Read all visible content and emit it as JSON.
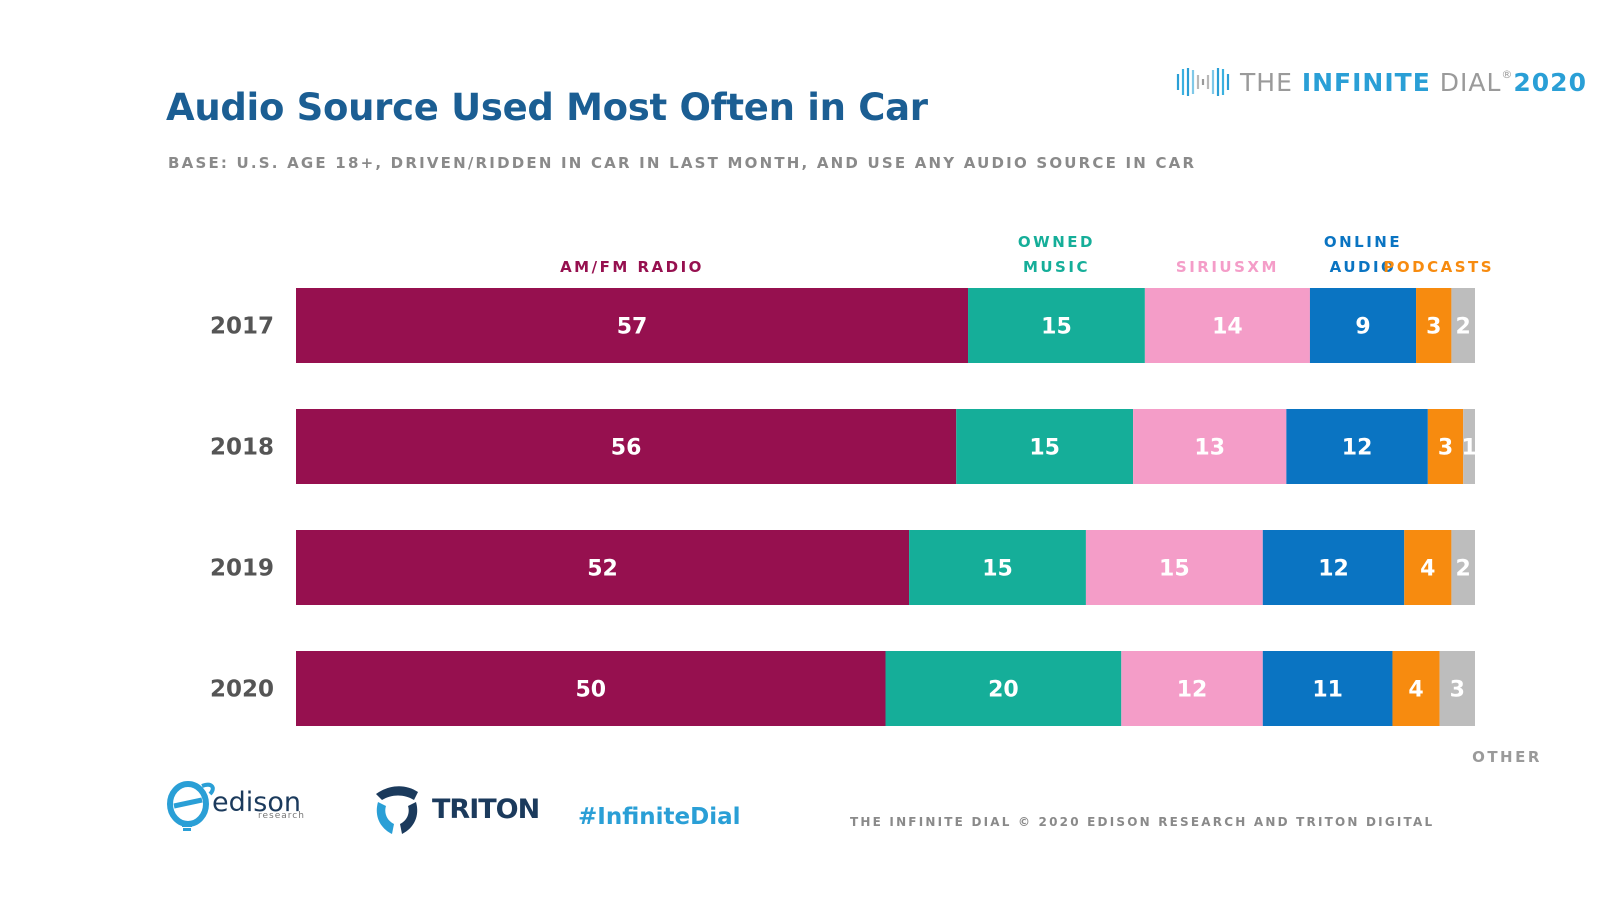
{
  "header": {
    "title": "Audio Source Used Most Often in Car",
    "subtitle": "BASE: U.S. AGE 18+, DRIVEN/RIDDEN IN CAR IN LAST MONTH, AND USE ANY AUDIO SOURCE IN CAR"
  },
  "brand": {
    "prefix": "THE ",
    "highlight": "INFINITE",
    "suffix": " DIAL",
    "trademark": "®",
    "year": "2020"
  },
  "chart_data": {
    "type": "bar",
    "orientation": "horizontal",
    "stacked": true,
    "categories": [
      "2017",
      "2018",
      "2019",
      "2020"
    ],
    "series": [
      {
        "name": "AM/FM RADIO",
        "legend_lines": [
          "AM/FM RADIO"
        ],
        "color": "#96104f",
        "values": [
          57,
          56,
          52,
          50
        ]
      },
      {
        "name": "OWNED MUSIC",
        "legend_lines": [
          "OWNED",
          "MUSIC"
        ],
        "color": "#15ae99",
        "values": [
          15,
          15,
          15,
          20
        ]
      },
      {
        "name": "SIRIUSXM",
        "legend_lines": [
          "SIRIUSXM"
        ],
        "color": "#f49dc8",
        "values": [
          14,
          13,
          15,
          12
        ]
      },
      {
        "name": "ONLINE AUDIO",
        "legend_lines": [
          "ONLINE",
          "AUDIO"
        ],
        "color": "#0a74c2",
        "values": [
          9,
          12,
          12,
          11
        ]
      },
      {
        "name": "PODCASTS",
        "legend_lines": [
          "PODCASTS"
        ],
        "color": "#f78b0f",
        "values": [
          3,
          3,
          4,
          4
        ]
      },
      {
        "name": "OTHER",
        "legend_lines": [
          "OTHER"
        ],
        "color": "#bdbdbd",
        "values": [
          2,
          1,
          2,
          3
        ]
      }
    ],
    "legend_colors": [
      "#96104f",
      "#15ae99",
      "#f49dc8",
      "#0a74c2",
      "#f78b0f",
      "#9a9a9a"
    ],
    "data_labels": true,
    "grid": false,
    "axes_visible": false
  },
  "footer": {
    "edison_name": "edison",
    "edison_sub": "research",
    "triton_name": "TRITON",
    "hashtag": "#InfiniteDial",
    "copyright": "THE INFINITE DIAL   © 2020 EDISON RESEARCH AND TRITON DIGITAL"
  },
  "colors": {
    "title": "#1b5e93",
    "subtitle": "#8a8a8a",
    "accent": "#2a9fd6"
  }
}
